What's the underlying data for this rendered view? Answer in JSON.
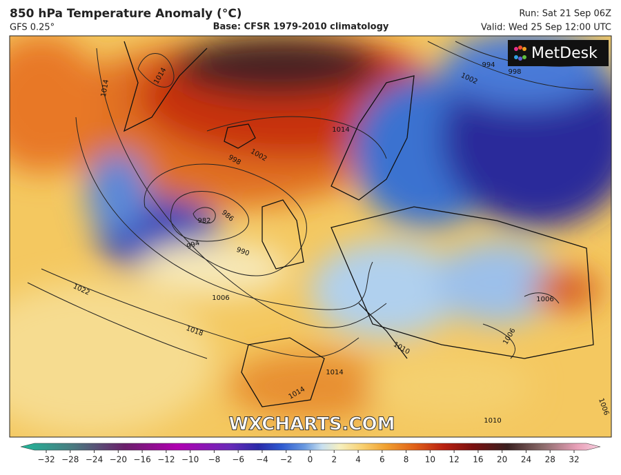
{
  "header": {
    "title": "850 hPa Temperature Anomaly (°C)",
    "model": "GFS 0.25°",
    "base": "Base: CFSR 1979-2010 climatology",
    "run": "Run: Sat 21 Sep 06Z",
    "valid": "Valid: Wed 25 Sep 12:00 UTC"
  },
  "map": {
    "logo": "MetDesk",
    "watermark": "WXCHARTS.COM",
    "isobar_labels": [
      "1014",
      "1014",
      "998",
      "1002",
      "1014",
      "986",
      "982",
      "994",
      "990",
      "1006",
      "1022",
      "1018",
      "994",
      "998",
      "1002",
      "1006",
      "1006",
      "1010",
      "1014",
      "1014",
      "1010",
      "1006"
    ]
  },
  "colorbar": {
    "labels": [
      "−32",
      "−28",
      "−24",
      "−20",
      "−16",
      "−12",
      "−10",
      "−8",
      "−6",
      "−4",
      "−2",
      "0",
      "2",
      "4",
      "6",
      "8",
      "10",
      "12",
      "16",
      "20",
      "24",
      "28",
      "32"
    ]
  }
}
